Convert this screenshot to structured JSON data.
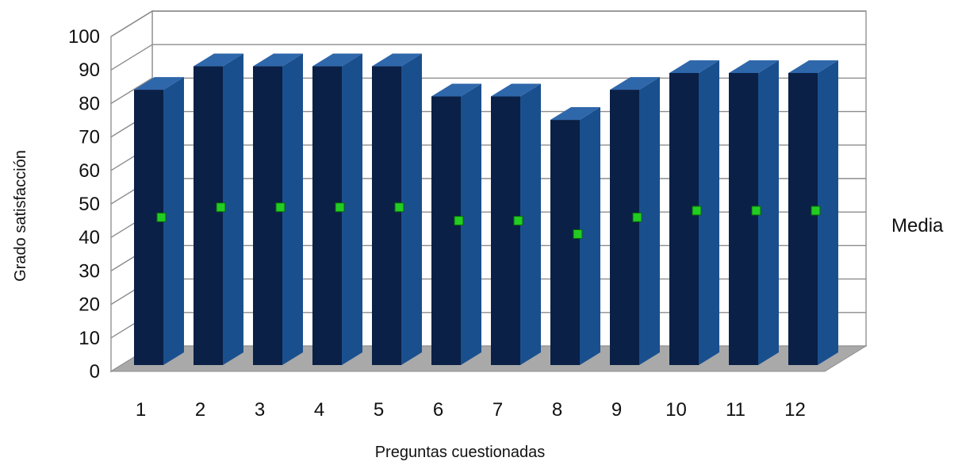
{
  "chart_data": {
    "type": "bar",
    "categories": [
      "1",
      "2",
      "3",
      "4",
      "5",
      "6",
      "7",
      "8",
      "9",
      "10",
      "11",
      "12"
    ],
    "series": [
      {
        "name": "Media",
        "values": [
          46,
          49,
          49,
          49,
          49,
          45,
          45,
          41,
          46,
          48,
          48,
          48
        ]
      }
    ],
    "bar_values": [
      86,
      93,
      93,
      93,
      93,
      84,
      84,
      77,
      86,
      91,
      91,
      91
    ],
    "yticks": [
      "0",
      "10",
      "20",
      "30",
      "40",
      "50",
      "60",
      "70",
      "80",
      "90",
      "100"
    ],
    "ylim": [
      0,
      100
    ],
    "xlabel": "Preguntas cuestionadas",
    "ylabel": "Grado satisfacción",
    "grid": true,
    "three_d": true,
    "legend_position": "right",
    "colors": {
      "bar_front": "#0a2046",
      "bar_side": "#1a4f8e",
      "bar_top": "#2f67ab",
      "marker": "#22cc22",
      "marker_edge": "#0a6a0a",
      "floor": "#a9a9a9",
      "gridline": "#8c8c8c"
    }
  }
}
